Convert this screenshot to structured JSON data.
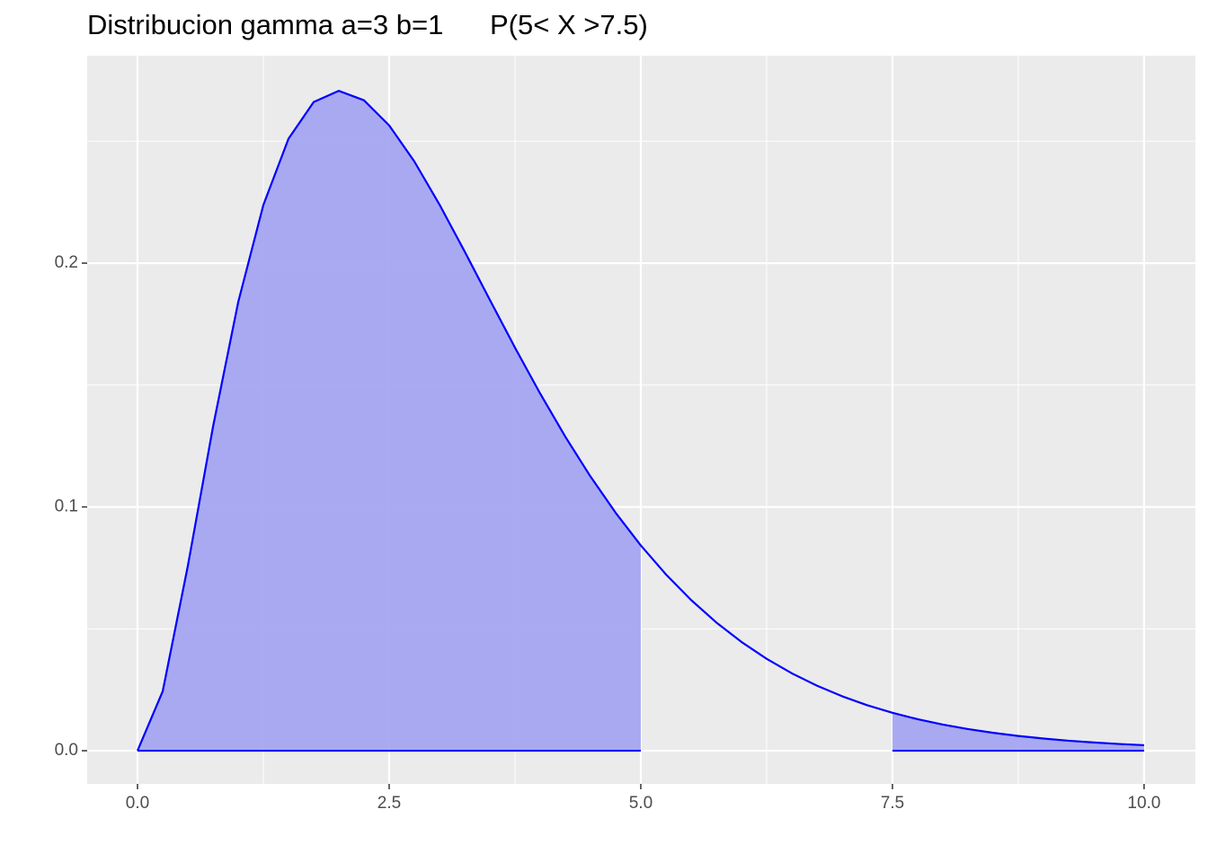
{
  "chart_data": {
    "type": "area",
    "title": "Distribucion gamma a=3 b=1      P(5< X >7.5)",
    "x": [
      0,
      0.25,
      0.5,
      0.75,
      1,
      1.25,
      1.5,
      1.75,
      2,
      2.25,
      2.5,
      2.75,
      3,
      3.25,
      3.5,
      3.75,
      4,
      4.25,
      4.5,
      4.75,
      5,
      5.25,
      5.5,
      5.75,
      6,
      6.25,
      6.5,
      6.75,
      7,
      7.25,
      7.5,
      7.75,
      8,
      8.25,
      8.5,
      8.75,
      9,
      9.25,
      9.5,
      9.75,
      10
    ],
    "values": [
      0,
      0.02434,
      0.07582,
      0.13285,
      0.18394,
      0.22383,
      0.25102,
      0.26607,
      0.27067,
      0.2668,
      0.25651,
      0.24173,
      0.22404,
      0.20478,
      0.18496,
      0.16537,
      0.14653,
      0.12881,
      0.11248,
      0.09761,
      0.08422,
      0.07232,
      0.06181,
      0.05262,
      0.04462,
      0.0377,
      0.03176,
      0.02667,
      0.02234,
      0.01866,
      0.01556,
      0.01294,
      0.01073,
      0.00889,
      0.00735,
      0.00606,
      0.005,
      0.00411,
      0.00338,
      0.00277,
      0.00227
    ],
    "color": "#0000ff",
    "fill": "#a5a5f2",
    "shade_ranges": [
      [
        0,
        5
      ],
      [
        7.5,
        10
      ]
    ],
    "xlim": [
      -0.5,
      10.51
    ],
    "ylim": [
      -0.0136,
      0.2851
    ],
    "xticks": [
      {
        "value": 0,
        "label": "0.0"
      },
      {
        "value": 2.5,
        "label": "2.5"
      },
      {
        "value": 5,
        "label": "5.0"
      },
      {
        "value": 7.5,
        "label": "7.5"
      },
      {
        "value": 10,
        "label": "10.0"
      }
    ],
    "yticks": [
      {
        "value": 0,
        "label": "0.0"
      },
      0.1,
      0.2
    ],
    "x_minor_grid": [
      1.25,
      3.75,
      6.25,
      8.75
    ],
    "y_minor_grid": [
      0.05,
      0.15,
      0.25
    ],
    "grid": true
  }
}
